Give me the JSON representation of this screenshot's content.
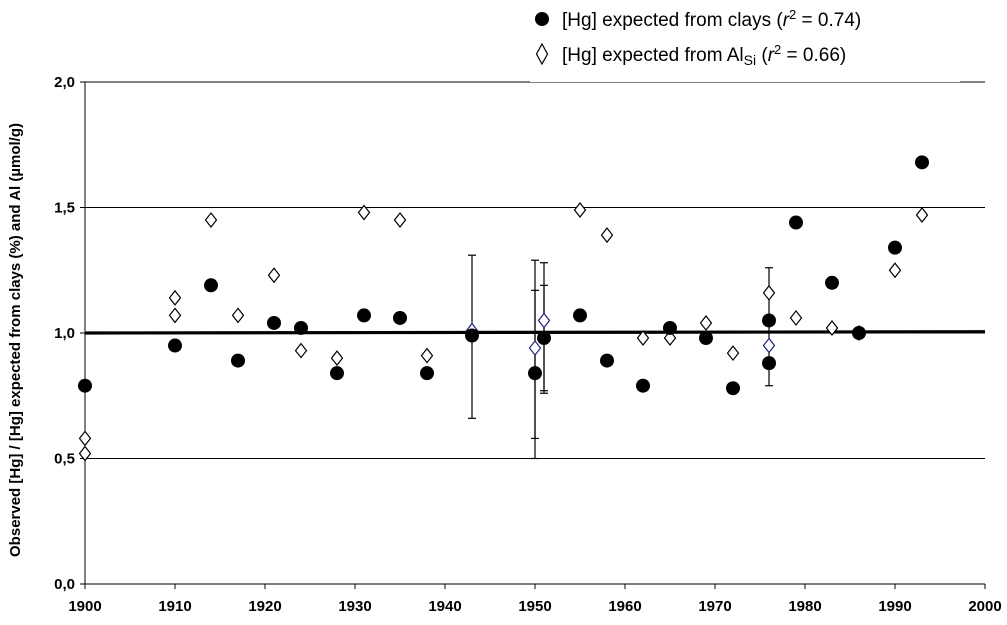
{
  "chart_data": {
    "type": "scatter",
    "title": "",
    "xlabel": "",
    "ylabel": "Observed [Hg] / [Hg] expected from clays (%) and Al (µmol/g)",
    "xlim": [
      1900,
      2000
    ],
    "ylim": [
      0,
      2
    ],
    "x_ticks": [
      "1900",
      "1910",
      "1920",
      "1930",
      "1940",
      "1950",
      "1960",
      "1970",
      "1980",
      "1990",
      "2000"
    ],
    "y_ticks": [
      "0,0",
      "0,5",
      "1,0",
      "1,5",
      "2,0"
    ],
    "grid": "horizontal",
    "legend_position": "top-right",
    "reference_line": {
      "y_start": 1.0,
      "y_end": 1.005,
      "color": "#000000"
    },
    "series": [
      {
        "name": "[Hg] expected from clays (r2 = 0.74)",
        "legend_main": "[Hg] expected from clays (",
        "legend_r": "r",
        "legend_sup": "2",
        "legend_rest": " = 0.74)",
        "marker": "circle",
        "color": "#000000",
        "points": [
          {
            "x": 1900,
            "y": 0.79
          },
          {
            "x": 1910,
            "y": 0.95
          },
          {
            "x": 1914,
            "y": 1.19
          },
          {
            "x": 1917,
            "y": 0.89
          },
          {
            "x": 1921,
            "y": 1.04
          },
          {
            "x": 1924,
            "y": 1.02
          },
          {
            "x": 1928,
            "y": 0.84
          },
          {
            "x": 1931,
            "y": 1.07
          },
          {
            "x": 1935,
            "y": 1.06
          },
          {
            "x": 1938,
            "y": 0.84
          },
          {
            "x": 1943,
            "y": 0.99,
            "err_low": 0.66,
            "err_high": 1.31
          },
          {
            "x": 1950,
            "y": 0.84,
            "err_low": 0.5,
            "err_high": 1.17
          },
          {
            "x": 1951,
            "y": 0.98,
            "err_low": 0.77,
            "err_high": 1.19
          },
          {
            "x": 1955,
            "y": 1.07
          },
          {
            "x": 1958,
            "y": 0.89
          },
          {
            "x": 1962,
            "y": 0.79
          },
          {
            "x": 1965,
            "y": 1.02
          },
          {
            "x": 1969,
            "y": 0.98
          },
          {
            "x": 1972,
            "y": 0.78
          },
          {
            "x": 1976,
            "y": 1.05
          },
          {
            "x": 1976,
            "y": 0.88,
            "err_low": 0.79,
            "err_high": 1.26
          },
          {
            "x": 1979,
            "y": 1.44
          },
          {
            "x": 1983,
            "y": 1.2
          },
          {
            "x": 1986,
            "y": 1.0
          },
          {
            "x": 1990,
            "y": 1.34
          },
          {
            "x": 1993,
            "y": 1.68
          }
        ]
      },
      {
        "name": "[Hg] expected from AlSi (r2 = 0.66)",
        "legend_main": "[Hg] expected from Al",
        "legend_sub": "Si",
        "legend_r": "r",
        "legend_sup": "2",
        "legend_rest": " = 0.66)",
        "marker": "diamond",
        "color": "#000000",
        "highlight_color": "#1a237e",
        "points": [
          {
            "x": 1900,
            "y": 0.58
          },
          {
            "x": 1900,
            "y": 0.52
          },
          {
            "x": 1910,
            "y": 1.14
          },
          {
            "x": 1910,
            "y": 1.07
          },
          {
            "x": 1914,
            "y": 1.45
          },
          {
            "x": 1917,
            "y": 1.07
          },
          {
            "x": 1921,
            "y": 1.23
          },
          {
            "x": 1924,
            "y": 0.93
          },
          {
            "x": 1928,
            "y": 0.9
          },
          {
            "x": 1931,
            "y": 1.48
          },
          {
            "x": 1935,
            "y": 1.45
          },
          {
            "x": 1938,
            "y": 0.91
          },
          {
            "x": 1943,
            "y": 1.01,
            "highlight": true
          },
          {
            "x": 1950,
            "y": 0.94,
            "highlight": true,
            "err_low": 0.58,
            "err_high": 1.29
          },
          {
            "x": 1951,
            "y": 1.05,
            "highlight": true,
            "err_low": 0.76,
            "err_high": 1.28
          },
          {
            "x": 1955,
            "y": 1.49
          },
          {
            "x": 1958,
            "y": 1.39
          },
          {
            "x": 1962,
            "y": 0.98
          },
          {
            "x": 1965,
            "y": 0.98
          },
          {
            "x": 1969,
            "y": 1.04
          },
          {
            "x": 1972,
            "y": 0.92
          },
          {
            "x": 1976,
            "y": 1.16
          },
          {
            "x": 1976,
            "y": 0.95,
            "highlight": true
          },
          {
            "x": 1979,
            "y": 1.06
          },
          {
            "x": 1983,
            "y": 1.02
          },
          {
            "x": 1986,
            "y": 1.0
          },
          {
            "x": 1990,
            "y": 1.25
          },
          {
            "x": 1993,
            "y": 1.47
          }
        ]
      }
    ]
  }
}
